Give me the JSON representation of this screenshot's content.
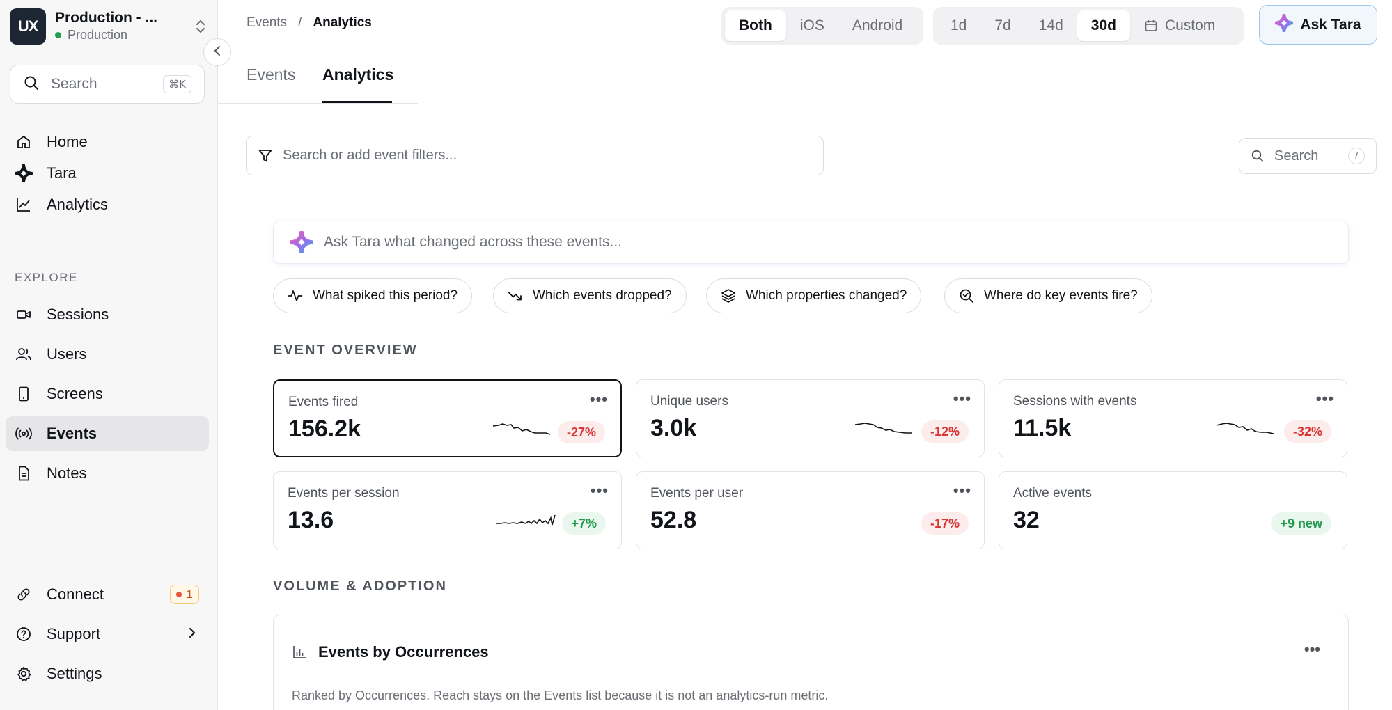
{
  "workspace": {
    "logo": "UX",
    "name": "Production - ...",
    "env": "Production",
    "status_color": "#22a052"
  },
  "sidebar": {
    "search_label": "Search",
    "search_shortcut": "⌘K",
    "nav": [
      {
        "label": "Home",
        "icon": "home-icon"
      },
      {
        "label": "Tara",
        "icon": "tara-icon"
      },
      {
        "label": "Analytics",
        "icon": "analytics-icon"
      }
    ],
    "section_label": "EXPLORE",
    "explore": [
      {
        "label": "Sessions",
        "icon": "video-icon"
      },
      {
        "label": "Users",
        "icon": "users-icon"
      },
      {
        "label": "Screens",
        "icon": "phone-icon"
      },
      {
        "label": "Events",
        "icon": "broadcast-icon",
        "active": true
      },
      {
        "label": "Notes",
        "icon": "note-icon"
      }
    ],
    "bottom": [
      {
        "label": "Connect",
        "icon": "link-icon",
        "badge": "1"
      },
      {
        "label": "Support",
        "icon": "help-icon"
      },
      {
        "label": "Settings",
        "icon": "gear-icon"
      }
    ]
  },
  "breadcrumb": {
    "parent": "Events",
    "separator": "/",
    "current": "Analytics"
  },
  "platform_toggle": {
    "options": [
      "Both",
      "iOS",
      "Android"
    ],
    "selected": "Both"
  },
  "range_toggle": {
    "options": [
      "1d",
      "7d",
      "14d",
      "30d"
    ],
    "selected": "30d",
    "custom_label": "Custom"
  },
  "ask_button_label": "Ask Tara",
  "tabs": [
    {
      "label": "Events"
    },
    {
      "label": "Analytics",
      "active": true
    }
  ],
  "filter": {
    "placeholder": "Search or add event filters..."
  },
  "right_search": {
    "placeholder": "Search",
    "shortcut": "/"
  },
  "ask_tara": {
    "placeholder": "Ask Tara what changed across these events...",
    "chips": [
      {
        "label": "What spiked this period?",
        "icon": "activity-icon"
      },
      {
        "label": "Which events dropped?",
        "icon": "trend-down-icon"
      },
      {
        "label": "Which properties changed?",
        "icon": "layers-icon"
      },
      {
        "label": "Where do key events fire?",
        "icon": "search-check-icon"
      }
    ]
  },
  "overview": {
    "title": "EVENT OVERVIEW",
    "cards": [
      {
        "label": "Events fired",
        "value": "156.2k",
        "delta": "-27%",
        "trend": "down",
        "selected": true
      },
      {
        "label": "Unique users",
        "value": "3.0k",
        "delta": "-12%",
        "trend": "down"
      },
      {
        "label": "Sessions with events",
        "value": "11.5k",
        "delta": "-32%",
        "trend": "down"
      },
      {
        "label": "Events per session",
        "value": "13.6",
        "delta": "+7%",
        "trend": "up"
      },
      {
        "label": "Events per user",
        "value": "52.8",
        "delta": "-17%",
        "trend": "down"
      },
      {
        "label": "Active events",
        "value": "32",
        "delta": "+9 new",
        "trend": "up"
      }
    ]
  },
  "volume": {
    "title": "VOLUME & ADOPTION",
    "card_title": "Events by Occurrences",
    "card_subtitle": "Ranked by Occurrences. Reach stays on the Events list because it is not an analytics-run metric."
  },
  "colors": {
    "negative": "#d93636",
    "positive": "#23994d",
    "accent_border": "#9cc7ef"
  }
}
